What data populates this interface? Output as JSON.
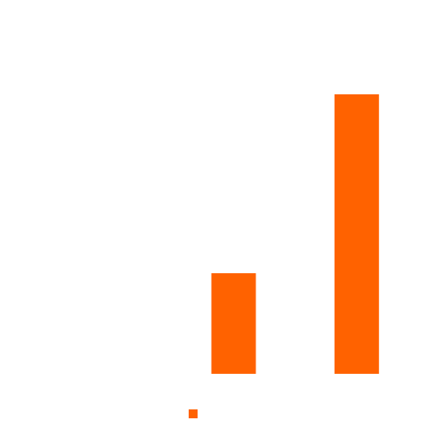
{
  "chart_data": {
    "type": "bar",
    "categories": [
      "",
      "",
      ""
    ],
    "values": [
      0,
      36,
      100
    ],
    "ylim": [
      0,
      100
    ],
    "grid": false,
    "legend": "bottom",
    "colors": {
      "bar": "#ff6200"
    }
  }
}
